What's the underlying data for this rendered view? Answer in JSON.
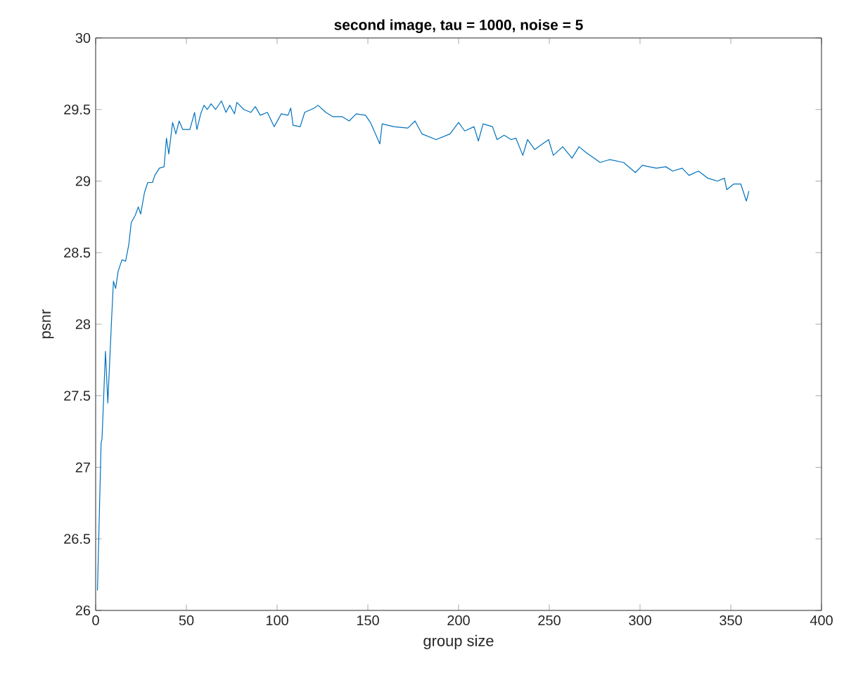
{
  "chart_data": {
    "type": "line",
    "title": "second image, tau = 1000, noise = 5",
    "xlabel": "group size",
    "ylabel": "psnr",
    "xlim": [
      0,
      400
    ],
    "xticks": [
      0,
      50,
      100,
      150,
      200,
      250,
      300,
      350,
      400
    ],
    "ylim": [
      26,
      30
    ],
    "yticks": [
      26,
      26.5,
      27,
      27.5,
      28,
      28.5,
      29,
      29.5,
      30
    ],
    "grid": false,
    "marker": "none",
    "line_style": "solid",
    "series": [
      {
        "color": "#0072bd",
        "x": [
          1,
          3,
          3.5,
          5.4,
          6.7,
          8.8,
          9.8,
          11,
          12.4,
          14.5,
          16.5,
          18.3,
          19.6,
          21.8,
          23.5,
          24.8,
          26.9,
          28.7,
          31.3,
          32.6,
          35.1,
          37.7,
          39,
          40.3,
          42.4,
          44.2,
          46,
          48,
          51.9,
          54.5,
          55.8,
          57.9,
          59.7,
          61.5,
          63.6,
          66.1,
          69.3,
          71.8,
          73.9,
          76.5,
          77.8,
          81.7,
          85.5,
          88,
          90.7,
          94.6,
          98.4,
          102.3,
          106,
          107.5,
          108.8,
          112.7,
          115.2,
          120.4,
          122.5,
          126.8,
          130.7,
          135.9,
          139.7,
          143.6,
          148.7,
          151.4,
          156.6,
          157.9,
          164.3,
          172,
          176,
          179.8,
          187.6,
          195.3,
          200,
          203.4,
          208.5,
          210.9,
          213.5,
          218.7,
          221.2,
          225.1,
          229,
          231.6,
          235.4,
          238,
          241.9,
          249.6,
          252.2,
          257.4,
          262.5,
          266.4,
          270.2,
          278,
          283.2,
          290.9,
          297.4,
          301.3,
          309,
          314.2,
          318,
          323.2,
          327,
          332.2,
          337.4,
          342.6,
          346.5,
          347.8,
          351.7,
          355.5,
          358.6,
          360
        ],
        "values": [
          26.14,
          27.17,
          27.2,
          27.81,
          27.45,
          28.04,
          28.3,
          28.25,
          28.37,
          28.45,
          28.44,
          28.56,
          28.71,
          28.76,
          28.82,
          28.77,
          28.92,
          28.99,
          28.99,
          29.04,
          29.09,
          29.1,
          29.3,
          29.19,
          29.41,
          29.33,
          29.42,
          29.36,
          29.36,
          29.48,
          29.36,
          29.47,
          29.53,
          29.5,
          29.54,
          29.5,
          29.56,
          29.48,
          29.53,
          29.47,
          29.55,
          29.5,
          29.48,
          29.52,
          29.46,
          29.48,
          29.38,
          29.47,
          29.46,
          29.51,
          29.39,
          29.38,
          29.48,
          29.51,
          29.53,
          29.48,
          29.45,
          29.45,
          29.42,
          29.47,
          29.46,
          29.41,
          29.26,
          29.4,
          29.38,
          29.37,
          29.42,
          29.33,
          29.29,
          29.33,
          29.41,
          29.35,
          29.38,
          29.28,
          29.4,
          29.38,
          29.29,
          29.32,
          29.29,
          29.3,
          29.18,
          29.29,
          29.22,
          29.29,
          29.18,
          29.24,
          29.16,
          29.24,
          29.2,
          29.13,
          29.15,
          29.13,
          29.06,
          29.11,
          29.09,
          29.1,
          29.07,
          29.09,
          29.04,
          29.07,
          29.02,
          29.0,
          29.02,
          28.94,
          28.98,
          28.98,
          28.86,
          28.93
        ]
      }
    ]
  }
}
